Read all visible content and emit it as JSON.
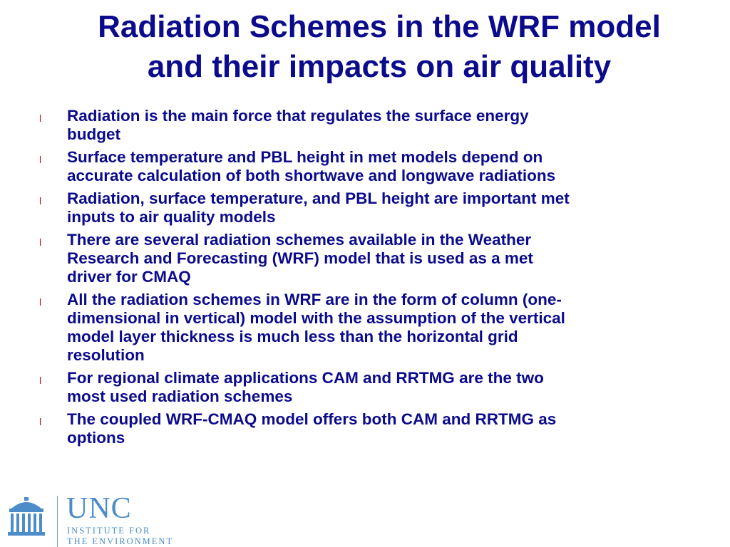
{
  "title": {
    "line1": "Radiation Schemes in the WRF model",
    "line2": "and their impacts on air quality"
  },
  "bullet_marker": "l",
  "bullets": [
    {
      "lines": [
        "Radiation is the main force that regulates the surface energy",
        "budget"
      ]
    },
    {
      "lines": [
        "Surface temperature and PBL height in met models depend on",
        "accurate calculation of both shortwave and longwave radiations"
      ]
    },
    {
      "lines": [
        "Radiation, surface temperature, and PBL height are important met",
        "inputs to air quality models"
      ]
    },
    {
      "lines": [
        "There are several radiation schemes available in the Weather",
        "Research and Forecasting (WRF) model that is used as a met",
        "driver for CMAQ"
      ]
    },
    {
      "lines": [
        "All the radiation schemes in WRF are in the form of column (one-",
        "dimensional in vertical) model with the assumption of the vertical",
        "model layer thickness is much less than the horizontal grid",
        "resolution"
      ]
    },
    {
      "lines": [
        "For regional climate applications CAM and RRTMG are the two",
        "most used radiation schemes"
      ]
    },
    {
      "lines": [
        "The coupled WRF-CMAQ model offers both CAM and RRTMG as",
        "options"
      ]
    }
  ],
  "logo": {
    "icon": "old-well-icon",
    "name": "UNC",
    "line1": "INSTITUTE FOR",
    "line2": "THE ENVIRONMENT"
  },
  "colors": {
    "text": "#0b0b8c",
    "bullet_marker": "#b11e2a",
    "logo": "#4b8cc9"
  }
}
